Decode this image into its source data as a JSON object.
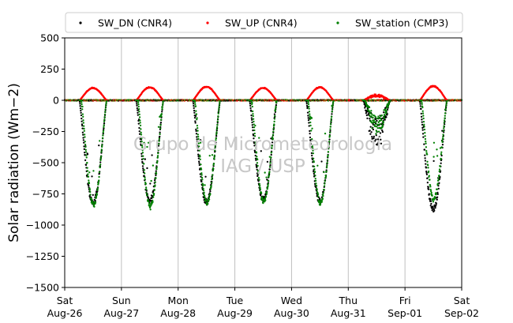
{
  "chart_data": {
    "type": "scatter",
    "title": "",
    "xlabel": "",
    "ylabel": "Solar radiation (Wm−2)",
    "ylim": [
      -1500,
      500
    ],
    "yticks": [
      500,
      250,
      0,
      -250,
      -500,
      -750,
      -1000,
      -1250,
      -1500
    ],
    "xlim_days": [
      0,
      7
    ],
    "xtick_labels": [
      {
        "day": "Sat",
        "date": "Aug-26"
      },
      {
        "day": "Sun",
        "date": "Aug-27"
      },
      {
        "day": "Mon",
        "date": "Aug-28"
      },
      {
        "day": "Tue",
        "date": "Aug-29"
      },
      {
        "day": "Wed",
        "date": "Aug-30"
      },
      {
        "day": "Thu",
        "date": "Aug-31"
      },
      {
        "day": "Fri",
        "date": "Sep-01"
      },
      {
        "day": "Sat",
        "date": "Sep-02"
      }
    ],
    "grid": "vertical",
    "zero_line": true,
    "legend": {
      "placement": "top",
      "entries": [
        {
          "name": "SW_DN (CNR4)",
          "color": "#000000"
        },
        {
          "name": "SW_UP (CNR4)",
          "color": "#ff0000"
        },
        {
          "name": "SW_station (CMP3)",
          "color": "#008000"
        }
      ]
    },
    "daily_peaks": [
      {
        "date": "Aug-26",
        "sw_dn": -850,
        "sw_up": 100,
        "sw_station": -870
      },
      {
        "date": "Aug-27",
        "sw_dn": -830,
        "sw_up": 105,
        "sw_station": -880
      },
      {
        "date": "Aug-28",
        "sw_dn": -840,
        "sw_up": 110,
        "sw_station": -850
      },
      {
        "date": "Aug-29",
        "sw_dn": -820,
        "sw_up": 100,
        "sw_station": -840
      },
      {
        "date": "Aug-30",
        "sw_dn": -830,
        "sw_up": 105,
        "sw_station": -850
      },
      {
        "date": "Aug-31",
        "sw_dn": -420,
        "sw_up": 45,
        "sw_station": -300
      },
      {
        "date": "Sep-01",
        "sw_dn": -900,
        "sw_up": 115,
        "sw_station": -820
      }
    ],
    "colors": {
      "sw_dn": "#000000",
      "sw_up": "#ff0000",
      "sw_station": "#008000"
    }
  },
  "watermark": {
    "line1": "Grupo de Micrometeorologia",
    "line2": "IAG / USP"
  }
}
